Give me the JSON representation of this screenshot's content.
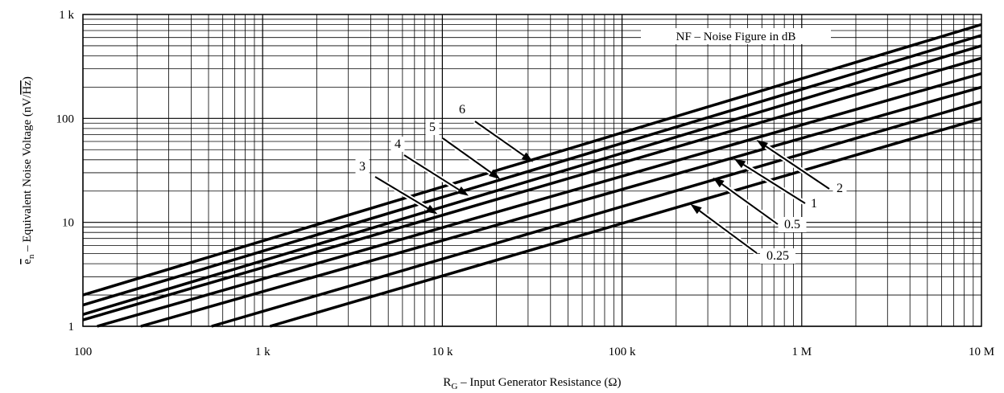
{
  "chart_data": {
    "type": "line",
    "title": "",
    "legend_title": "NF – Noise Figure in dB",
    "xlabel": {
      "prefix": "R",
      "sub": "G",
      "rest": " – Input Generator Resistance (Ω)"
    },
    "ylabel": {
      "sym": "e",
      "sub": "n",
      "mid": " – Equivalent Noise Voltage  (nV/",
      "root": "Hz",
      "end": ")"
    },
    "x_scale": "log",
    "y_scale": "log",
    "xlim": [
      100,
      10000000
    ],
    "ylim": [
      1,
      1000
    ],
    "grid": true,
    "x_ticks": [
      {
        "value": 100,
        "label": "100"
      },
      {
        "value": 1000,
        "label": "1 k"
      },
      {
        "value": 10000,
        "label": "10 k"
      },
      {
        "value": 100000,
        "label": "100 k"
      },
      {
        "value": 1000000,
        "label": "1 M"
      },
      {
        "value": 10000000,
        "label": "10 M"
      }
    ],
    "y_ticks": [
      {
        "value": 1,
        "label": "1"
      },
      {
        "value": 10,
        "label": "10"
      },
      {
        "value": 100,
        "label": "100"
      },
      {
        "value": 1000,
        "label": "1 k"
      }
    ],
    "series": [
      {
        "name": "6",
        "x": [
          100,
          10000000
        ],
        "y": [
          2.0,
          800
        ]
      },
      {
        "name": "5",
        "x": [
          100,
          10000000
        ],
        "y": [
          1.6,
          630
        ]
      },
      {
        "name": "4",
        "x": [
          100,
          10000000
        ],
        "y": [
          1.3,
          500
        ]
      },
      {
        "name": "3",
        "x": [
          100,
          10000000
        ],
        "y": [
          1.15,
          380
        ]
      },
      {
        "name": "2",
        "x": [
          120,
          10000000
        ],
        "y": [
          1.0,
          270
        ]
      },
      {
        "name": "1",
        "x": [
          210,
          10000000
        ],
        "y": [
          1.0,
          200
        ]
      },
      {
        "name": "0.5",
        "x": [
          520,
          10000000
        ],
        "y": [
          1.0,
          145
        ]
      },
      {
        "name": "0.25",
        "x": [
          1100,
          10000000
        ],
        "y": [
          1.0,
          100
        ]
      }
    ],
    "annotations": [
      {
        "label": "6",
        "x": 32000,
        "y": 38
      },
      {
        "label": "5",
        "x": 21000,
        "y": 26
      },
      {
        "label": "4",
        "x": 14000,
        "y": 18
      },
      {
        "label": "3",
        "x": 9400,
        "y": 12
      },
      {
        "label": "2",
        "x": 560000,
        "y": 62
      },
      {
        "label": "1",
        "x": 420000,
        "y": 41
      },
      {
        "label": "0.5",
        "x": 320000,
        "y": 27
      },
      {
        "label": "0.25",
        "x": 240000,
        "y": 15
      }
    ]
  }
}
